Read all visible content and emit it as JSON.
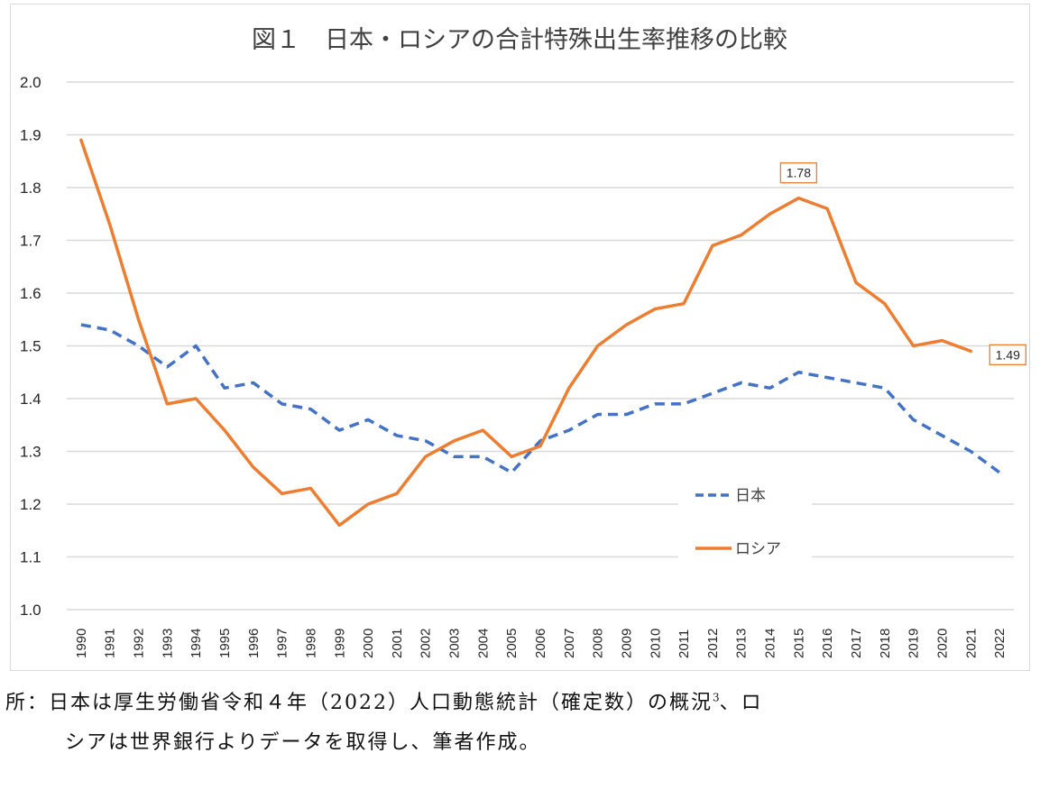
{
  "chart_data": {
    "type": "line",
    "title": "図１　日本・ロシアの合計特殊出生率推移の比較",
    "xlabel": "",
    "ylabel": "",
    "ylim": [
      1.0,
      2.0
    ],
    "yticks": [
      "1.0",
      "1.1",
      "1.2",
      "1.3",
      "1.4",
      "1.5",
      "1.6",
      "1.7",
      "1.8",
      "1.9",
      "2.0"
    ],
    "ytick_values": [
      1.0,
      1.1,
      1.2,
      1.3,
      1.4,
      1.5,
      1.6,
      1.7,
      1.8,
      1.9,
      2.0
    ],
    "grid": true,
    "legend_position": "center-right",
    "categories": [
      "1990",
      "1991",
      "1992",
      "1993",
      "1994",
      "1995",
      "1996",
      "1997",
      "1998",
      "1999",
      "2000",
      "2001",
      "2002",
      "2003",
      "2004",
      "2005",
      "2006",
      "2007",
      "2008",
      "2009",
      "2010",
      "2011",
      "2012",
      "2013",
      "2014",
      "2015",
      "2016",
      "2017",
      "2018",
      "2019",
      "2020",
      "2021",
      "2022"
    ],
    "series": [
      {
        "name": "日本",
        "color": "#4472c4",
        "style": "dashed",
        "values": [
          1.54,
          1.53,
          1.5,
          1.46,
          1.5,
          1.42,
          1.43,
          1.39,
          1.38,
          1.34,
          1.36,
          1.33,
          1.32,
          1.29,
          1.29,
          1.26,
          1.32,
          1.34,
          1.37,
          1.37,
          1.39,
          1.39,
          1.41,
          1.43,
          1.42,
          1.45,
          1.44,
          1.43,
          1.42,
          1.36,
          1.33,
          1.3,
          1.26
        ]
      },
      {
        "name": "ロシア",
        "color": "#ed7d31",
        "style": "solid",
        "values": [
          1.89,
          1.73,
          1.55,
          1.39,
          1.4,
          1.34,
          1.27,
          1.22,
          1.23,
          1.16,
          1.2,
          1.22,
          1.29,
          1.32,
          1.34,
          1.29,
          1.31,
          1.42,
          1.5,
          1.54,
          1.57,
          1.58,
          1.69,
          1.71,
          1.75,
          1.78,
          1.76,
          1.62,
          1.58,
          1.5,
          1.51,
          1.49,
          null
        ]
      }
    ],
    "annotations": [
      {
        "series": "ロシア",
        "category": "2015",
        "text": "1.78"
      },
      {
        "series": "ロシア",
        "category": "2021",
        "text": "1.49"
      }
    ]
  },
  "caption": {
    "line1_main": "所：日本は厚生労働省令和４年（2022）人口動態統計（確定数）の概況",
    "line1_sup": "3",
    "line1_tail": "、ロ",
    "line2": "シアは世界銀行よりデータを取得し、筆者作成。"
  }
}
